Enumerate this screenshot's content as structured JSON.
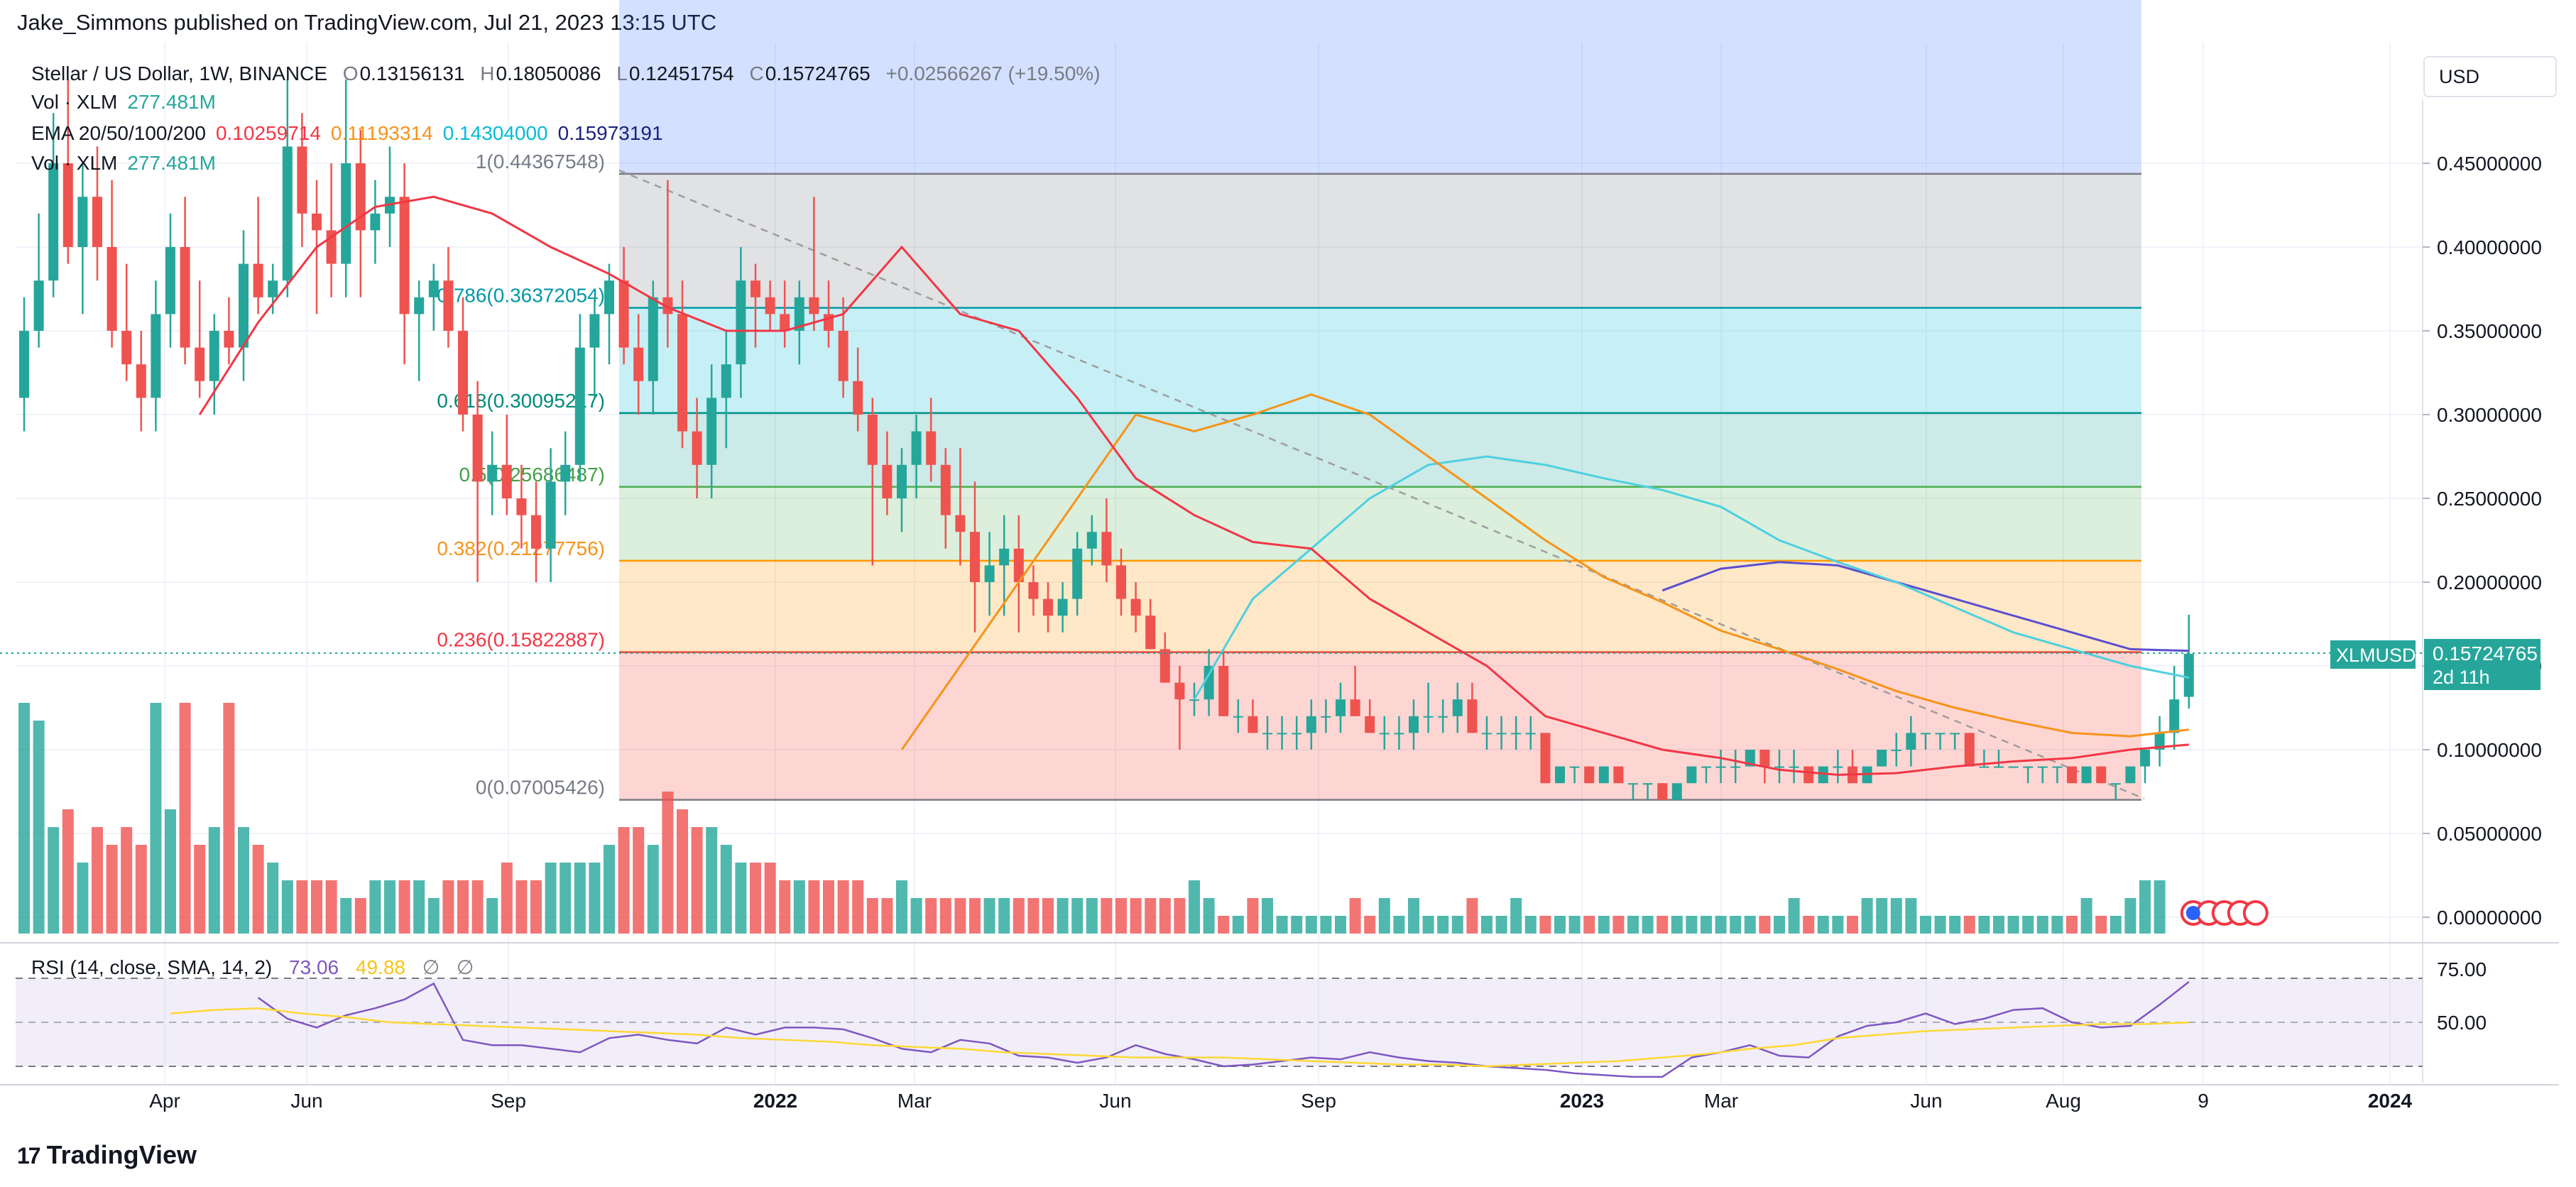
{
  "header": {
    "published": "Jake_Simmons published on TradingView.com, Jul 21, 2023 13:15 UTC"
  },
  "legend": {
    "symbol": "Stellar / US Dollar, 1W, BINANCE",
    "o_label": "O",
    "o_value": "0.13156131",
    "h_label": "H",
    "h_value": "0.18050086",
    "l_label": "L",
    "l_value": "0.12451754",
    "c_label": "C",
    "c_value": "0.15724765",
    "change": "+0.02566267 (+19.50%)",
    "vol1_label": "Vol · XLM",
    "vol1_value": "277.481M",
    "ema_label": "EMA 20/50/100/200",
    "ema20": "0.10259714",
    "ema50": "0.11193314",
    "ema100": "0.14304000",
    "ema200": "0.15973191",
    "vol2_label": "Vol · XLM",
    "vol2_value": "277.481M"
  },
  "colors": {
    "up": "#26a69a",
    "down": "#ef5350",
    "ema20": "#f23645",
    "ema50": "#f7931a",
    "ema100": "#4dd0e1",
    "ema200": "#5b4fcf",
    "rsi": "#7e57c2",
    "rsi_ma": "#fdd835"
  },
  "price_axis": {
    "currency": "USD",
    "last_symbol": "XLMUSD",
    "last_price": "0.15724765",
    "countdown": "2d 11h"
  },
  "rsi_panel": {
    "label": "RSI (14, close, SMA, 14, 2)",
    "value": "73.06",
    "ma_value": "49.88",
    "tick_hi": "75.00",
    "tick_mid": "50.00"
  },
  "time_axis": [
    "Apr",
    "Jun",
    "Sep",
    "2022",
    "Mar",
    "Jun",
    "Sep",
    "2023",
    "Mar",
    "Jun",
    "Aug",
    "9",
    "2024"
  ],
  "footer": {
    "brand": "TradingView",
    "logo_glyph": "17"
  },
  "chart_data": {
    "type": "candlestick",
    "symbol": "XLMUSD",
    "timeframe": "1W",
    "y_ticks": [
      0.0,
      0.05,
      0.1,
      0.15,
      0.2,
      0.25,
      0.3,
      0.35,
      0.4,
      0.45
    ],
    "y_tick_labels": [
      "0.00000000",
      "0.05000000",
      "0.10000000",
      "0.15000000",
      "0.20000000",
      "0.25000000",
      "0.30000000",
      "0.35000000",
      "0.40000000",
      "0.45000000"
    ],
    "fib_levels": [
      {
        "label": "1(0.44367548)",
        "value": 0.44367548
      },
      {
        "label": "0.786(0.36372054)",
        "value": 0.36372054
      },
      {
        "label": "0.618(0.30095217)",
        "value": 0.30095217
      },
      {
        "label": "0.5(0.25686487)",
        "value": 0.25686487
      },
      {
        "label": "0.382(0.21277756)",
        "value": 0.21277756
      },
      {
        "label": "0.236(0.15822887)",
        "value": 0.15822887
      },
      {
        "label": "0(0.07005426)",
        "value": 0.07005426
      }
    ],
    "candles": [
      [
        0.31,
        0.37,
        0.29,
        0.35
      ],
      [
        0.35,
        0.42,
        0.34,
        0.38
      ],
      [
        0.38,
        0.48,
        0.37,
        0.45
      ],
      [
        0.45,
        0.5,
        0.39,
        0.4
      ],
      [
        0.4,
        0.45,
        0.36,
        0.43
      ],
      [
        0.43,
        0.46,
        0.38,
        0.4
      ],
      [
        0.4,
        0.44,
        0.34,
        0.35
      ],
      [
        0.35,
        0.39,
        0.32,
        0.33
      ],
      [
        0.33,
        0.35,
        0.29,
        0.31
      ],
      [
        0.31,
        0.38,
        0.29,
        0.36
      ],
      [
        0.36,
        0.42,
        0.34,
        0.4
      ],
      [
        0.4,
        0.43,
        0.33,
        0.34
      ],
      [
        0.34,
        0.38,
        0.31,
        0.32
      ],
      [
        0.32,
        0.36,
        0.3,
        0.35
      ],
      [
        0.35,
        0.37,
        0.33,
        0.34
      ],
      [
        0.34,
        0.41,
        0.32,
        0.39
      ],
      [
        0.39,
        0.43,
        0.36,
        0.37
      ],
      [
        0.37,
        0.39,
        0.36,
        0.38
      ],
      [
        0.38,
        0.5,
        0.37,
        0.46
      ],
      [
        0.46,
        0.48,
        0.4,
        0.42
      ],
      [
        0.42,
        0.44,
        0.36,
        0.41
      ],
      [
        0.41,
        0.45,
        0.37,
        0.39
      ],
      [
        0.39,
        0.5,
        0.37,
        0.45
      ],
      [
        0.45,
        0.47,
        0.37,
        0.41
      ],
      [
        0.41,
        0.44,
        0.39,
        0.42
      ],
      [
        0.42,
        0.46,
        0.4,
        0.43
      ],
      [
        0.43,
        0.45,
        0.33,
        0.36
      ],
      [
        0.36,
        0.38,
        0.32,
        0.37
      ],
      [
        0.37,
        0.39,
        0.35,
        0.38
      ],
      [
        0.38,
        0.4,
        0.34,
        0.35
      ],
      [
        0.35,
        0.37,
        0.29,
        0.3
      ],
      [
        0.3,
        0.32,
        0.2,
        0.26
      ],
      [
        0.26,
        0.29,
        0.24,
        0.27
      ],
      [
        0.27,
        0.3,
        0.24,
        0.25
      ],
      [
        0.25,
        0.27,
        0.22,
        0.24
      ],
      [
        0.24,
        0.26,
        0.2,
        0.22
      ],
      [
        0.22,
        0.28,
        0.2,
        0.26
      ],
      [
        0.26,
        0.29,
        0.24,
        0.27
      ],
      [
        0.27,
        0.36,
        0.26,
        0.34
      ],
      [
        0.34,
        0.37,
        0.31,
        0.36
      ],
      [
        0.36,
        0.39,
        0.33,
        0.38
      ],
      [
        0.38,
        0.4,
        0.33,
        0.34
      ],
      [
        0.34,
        0.36,
        0.3,
        0.32
      ],
      [
        0.32,
        0.38,
        0.3,
        0.37
      ],
      [
        0.37,
        0.44,
        0.34,
        0.36
      ],
      [
        0.36,
        0.38,
        0.28,
        0.29
      ],
      [
        0.29,
        0.31,
        0.25,
        0.27
      ],
      [
        0.27,
        0.33,
        0.25,
        0.31
      ],
      [
        0.31,
        0.35,
        0.28,
        0.33
      ],
      [
        0.33,
        0.4,
        0.31,
        0.38
      ],
      [
        0.38,
        0.39,
        0.34,
        0.37
      ],
      [
        0.37,
        0.38,
        0.35,
        0.36
      ],
      [
        0.36,
        0.38,
        0.34,
        0.35
      ],
      [
        0.35,
        0.38,
        0.33,
        0.37
      ],
      [
        0.37,
        0.43,
        0.35,
        0.36
      ],
      [
        0.36,
        0.38,
        0.34,
        0.35
      ],
      [
        0.35,
        0.37,
        0.31,
        0.32
      ],
      [
        0.32,
        0.34,
        0.29,
        0.3
      ],
      [
        0.3,
        0.31,
        0.21,
        0.27
      ],
      [
        0.27,
        0.29,
        0.24,
        0.25
      ],
      [
        0.25,
        0.28,
        0.23,
        0.27
      ],
      [
        0.27,
        0.3,
        0.25,
        0.29
      ],
      [
        0.29,
        0.31,
        0.26,
        0.27
      ],
      [
        0.27,
        0.28,
        0.22,
        0.24
      ],
      [
        0.24,
        0.28,
        0.21,
        0.23
      ],
      [
        0.23,
        0.26,
        0.17,
        0.2
      ],
      [
        0.2,
        0.23,
        0.18,
        0.21
      ],
      [
        0.21,
        0.24,
        0.18,
        0.22
      ],
      [
        0.22,
        0.24,
        0.17,
        0.2
      ],
      [
        0.2,
        0.21,
        0.18,
        0.19
      ],
      [
        0.19,
        0.2,
        0.17,
        0.18
      ],
      [
        0.18,
        0.2,
        0.17,
        0.19
      ],
      [
        0.19,
        0.23,
        0.18,
        0.22
      ],
      [
        0.22,
        0.24,
        0.21,
        0.23
      ],
      [
        0.23,
        0.25,
        0.2,
        0.21
      ],
      [
        0.21,
        0.22,
        0.18,
        0.19
      ],
      [
        0.19,
        0.2,
        0.17,
        0.18
      ],
      [
        0.18,
        0.19,
        0.16,
        0.16
      ],
      [
        0.16,
        0.17,
        0.14,
        0.14
      ],
      [
        0.14,
        0.15,
        0.1,
        0.13
      ],
      [
        0.13,
        0.14,
        0.12,
        0.13
      ],
      [
        0.13,
        0.16,
        0.12,
        0.15
      ],
      [
        0.15,
        0.16,
        0.12,
        0.12
      ],
      [
        0.12,
        0.13,
        0.11,
        0.12
      ],
      [
        0.12,
        0.13,
        0.11,
        0.11
      ],
      [
        0.11,
        0.12,
        0.1,
        0.11
      ],
      [
        0.11,
        0.12,
        0.1,
        0.11
      ],
      [
        0.11,
        0.12,
        0.1,
        0.11
      ],
      [
        0.11,
        0.13,
        0.1,
        0.12
      ],
      [
        0.12,
        0.13,
        0.11,
        0.12
      ],
      [
        0.12,
        0.14,
        0.11,
        0.13
      ],
      [
        0.13,
        0.15,
        0.12,
        0.12
      ],
      [
        0.12,
        0.13,
        0.11,
        0.11
      ],
      [
        0.11,
        0.12,
        0.1,
        0.11
      ],
      [
        0.11,
        0.12,
        0.1,
        0.11
      ],
      [
        0.11,
        0.13,
        0.1,
        0.12
      ],
      [
        0.12,
        0.14,
        0.11,
        0.12
      ],
      [
        0.12,
        0.13,
        0.11,
        0.12
      ],
      [
        0.12,
        0.14,
        0.11,
        0.13
      ],
      [
        0.13,
        0.14,
        0.11,
        0.11
      ],
      [
        0.11,
        0.12,
        0.1,
        0.11
      ],
      [
        0.11,
        0.12,
        0.1,
        0.11
      ],
      [
        0.11,
        0.12,
        0.1,
        0.11
      ],
      [
        0.11,
        0.12,
        0.1,
        0.11
      ],
      [
        0.11,
        0.11,
        0.08,
        0.08
      ],
      [
        0.08,
        0.09,
        0.08,
        0.09
      ],
      [
        0.09,
        0.09,
        0.08,
        0.09
      ],
      [
        0.09,
        0.09,
        0.08,
        0.08
      ],
      [
        0.08,
        0.09,
        0.08,
        0.09
      ],
      [
        0.09,
        0.09,
        0.08,
        0.08
      ],
      [
        0.08,
        0.08,
        0.07,
        0.08
      ],
      [
        0.08,
        0.08,
        0.07,
        0.08
      ],
      [
        0.08,
        0.08,
        0.07,
        0.07
      ],
      [
        0.07,
        0.08,
        0.07,
        0.08
      ],
      [
        0.08,
        0.09,
        0.08,
        0.09
      ],
      [
        0.09,
        0.09,
        0.08,
        0.09
      ],
      [
        0.09,
        0.1,
        0.08,
        0.09
      ],
      [
        0.09,
        0.1,
        0.08,
        0.09
      ],
      [
        0.09,
        0.1,
        0.09,
        0.1
      ],
      [
        0.1,
        0.1,
        0.08,
        0.09
      ],
      [
        0.09,
        0.1,
        0.08,
        0.09
      ],
      [
        0.09,
        0.1,
        0.08,
        0.09
      ],
      [
        0.09,
        0.09,
        0.08,
        0.08
      ],
      [
        0.08,
        0.09,
        0.08,
        0.09
      ],
      [
        0.09,
        0.1,
        0.08,
        0.09
      ],
      [
        0.09,
        0.1,
        0.08,
        0.08
      ],
      [
        0.08,
        0.09,
        0.08,
        0.09
      ],
      [
        0.09,
        0.1,
        0.09,
        0.1
      ],
      [
        0.1,
        0.11,
        0.09,
        0.1
      ],
      [
        0.1,
        0.12,
        0.09,
        0.11
      ],
      [
        0.11,
        0.11,
        0.1,
        0.11
      ],
      [
        0.11,
        0.11,
        0.1,
        0.11
      ],
      [
        0.11,
        0.11,
        0.1,
        0.11
      ],
      [
        0.11,
        0.11,
        0.09,
        0.09
      ],
      [
        0.09,
        0.1,
        0.09,
        0.09
      ],
      [
        0.09,
        0.1,
        0.09,
        0.09
      ],
      [
        0.09,
        0.09,
        0.09,
        0.09
      ],
      [
        0.09,
        0.09,
        0.08,
        0.09
      ],
      [
        0.09,
        0.09,
        0.08,
        0.09
      ],
      [
        0.09,
        0.09,
        0.08,
        0.09
      ],
      [
        0.09,
        0.09,
        0.08,
        0.08
      ],
      [
        0.08,
        0.09,
        0.08,
        0.09
      ],
      [
        0.09,
        0.09,
        0.08,
        0.08
      ],
      [
        0.08,
        0.08,
        0.07,
        0.08
      ],
      [
        0.08,
        0.09,
        0.08,
        0.09
      ],
      [
        0.09,
        0.1,
        0.08,
        0.1
      ],
      [
        0.1,
        0.12,
        0.09,
        0.11
      ],
      [
        0.11,
        0.15,
        0.1,
        0.13
      ],
      [
        0.131561,
        0.180501,
        0.124518,
        0.157248
      ]
    ],
    "volumes": [
      1.3,
      1.2,
      0.6,
      0.7,
      0.4,
      0.6,
      0.5,
      0.6,
      0.5,
      1.3,
      0.7,
      1.3,
      0.5,
      0.6,
      1.3,
      0.6,
      0.5,
      0.4,
      0.3,
      0.3,
      0.3,
      0.3,
      0.2,
      0.2,
      0.3,
      0.3,
      0.3,
      0.3,
      0.2,
      0.3,
      0.3,
      0.3,
      0.2,
      0.4,
      0.3,
      0.3,
      0.4,
      0.4,
      0.4,
      0.4,
      0.5,
      0.6,
      0.6,
      0.5,
      0.8,
      0.7,
      0.6,
      0.6,
      0.5,
      0.4,
      0.4,
      0.4,
      0.3,
      0.3,
      0.3,
      0.3,
      0.3,
      0.3,
      0.2,
      0.2,
      0.3,
      0.2,
      0.2,
      0.2,
      0.2,
      0.2,
      0.2,
      0.2,
      0.2,
      0.2,
      0.2,
      0.2,
      0.2,
      0.2,
      0.2,
      0.2,
      0.2,
      0.2,
      0.2,
      0.2,
      0.3,
      0.2,
      0.1,
      0.1,
      0.2,
      0.2,
      0.1,
      0.1,
      0.1,
      0.1,
      0.1,
      0.2,
      0.1,
      0.2,
      0.1,
      0.2,
      0.1,
      0.1,
      0.1,
      0.2,
      0.1,
      0.1,
      0.2,
      0.1,
      0.1,
      0.1,
      0.1,
      0.1,
      0.1,
      0.1,
      0.1,
      0.1,
      0.1,
      0.1,
      0.1,
      0.1,
      0.1,
      0.1,
      0.1,
      0.1,
      0.1,
      0.2,
      0.1,
      0.1,
      0.1,
      0.1,
      0.2,
      0.2,
      0.2,
      0.2,
      0.1,
      0.1,
      0.1,
      0.1,
      0.1,
      0.1,
      0.1,
      0.1,
      0.1,
      0.1,
      0.1,
      0.2,
      0.1,
      0.1,
      0.2,
      0.3,
      0.3
    ],
    "ema20": [
      0.3,
      0.355,
      0.4,
      0.424,
      0.43,
      0.42,
      0.4,
      0.384,
      0.364,
      0.35,
      0.35,
      0.36,
      0.4,
      0.36,
      0.35,
      0.31,
      0.262,
      0.24,
      0.224,
      0.22,
      0.19,
      0.17,
      0.15,
      0.12,
      0.11,
      0.1,
      0.095,
      0.088,
      0.085,
      0.086,
      0.09,
      0.093,
      0.095,
      0.1,
      0.103
    ],
    "ema50": [
      0.1,
      0.15,
      0.2,
      0.25,
      0.3,
      0.29,
      0.3,
      0.312,
      0.3,
      0.275,
      0.25,
      0.225,
      0.203,
      0.188,
      0.171,
      0.16,
      0.148,
      0.135,
      0.125,
      0.117,
      0.11,
      0.108,
      0.112
    ],
    "ema100": [
      0.13,
      0.19,
      0.22,
      0.25,
      0.27,
      0.275,
      0.27,
      0.262,
      0.255,
      0.245,
      0.225,
      0.212,
      0.2,
      0.185,
      0.17,
      0.16,
      0.15,
      0.143
    ],
    "ema200": [
      0.195,
      0.208,
      0.212,
      0.21,
      0.2,
      0.19,
      0.18,
      0.17,
      0.16,
      0.159
    ],
    "rsi": [
      64,
      52,
      47,
      54,
      58,
      63,
      72,
      40,
      37,
      37,
      35,
      33,
      41,
      43,
      40,
      38,
      47,
      43,
      47,
      47,
      46,
      41,
      35,
      33,
      40,
      38,
      31,
      30,
      27,
      30,
      37,
      32,
      29,
      25,
      26,
      28,
      30,
      29,
      33,
      30,
      28,
      27,
      25,
      24,
      23,
      21,
      20,
      19,
      19,
      30,
      33,
      37,
      31,
      30,
      42,
      48,
      50,
      55,
      49,
      52,
      57,
      58,
      50,
      47,
      48,
      60,
      73
    ],
    "rsi_ma": [
      55,
      57,
      58,
      55,
      53,
      50,
      49,
      48,
      47,
      46,
      45,
      44,
      43,
      41,
      40,
      39,
      37,
      36,
      35,
      33,
      32,
      31,
      30,
      30,
      30,
      29,
      28,
      27,
      26,
      26,
      25,
      26,
      27,
      28,
      30,
      32,
      35,
      37,
      41,
      43,
      45,
      46,
      47,
      48,
      49,
      49,
      49.88
    ]
  }
}
